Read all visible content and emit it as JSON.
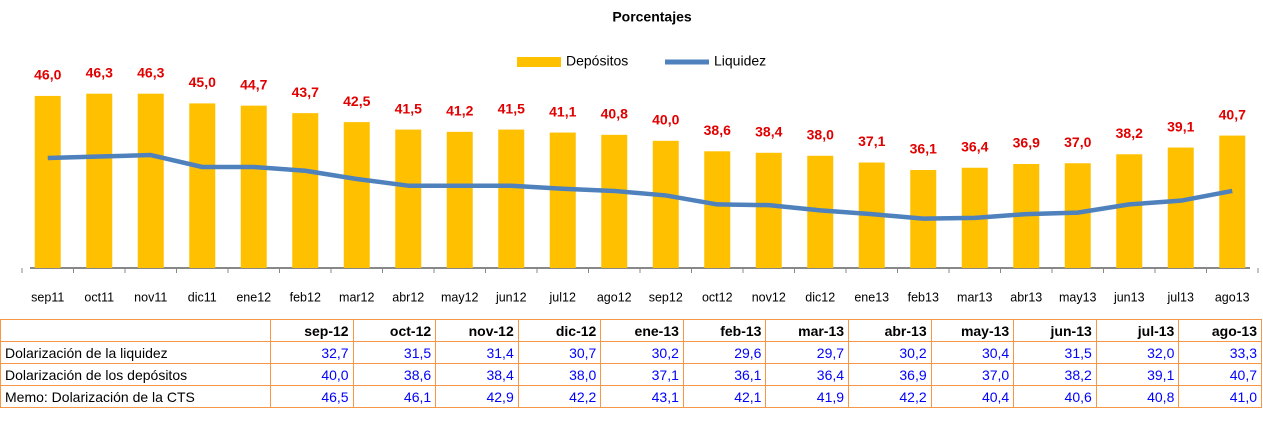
{
  "chart_data": {
    "type": "combo",
    "title": "Porcentajes",
    "categories": [
      "sep11",
      "oct11",
      "nov11",
      "dic11",
      "ene12",
      "feb12",
      "mar12",
      "abr12",
      "may12",
      "jun12",
      "jul12",
      "ago12",
      "sep12",
      "oct12",
      "nov12",
      "dic12",
      "ene13",
      "feb13",
      "mar13",
      "abr13",
      "may13",
      "jun13",
      "jul13",
      "ago13"
    ],
    "series": [
      {
        "name": "Depósitos",
        "type": "bar",
        "color": "#FFC000",
        "label_color": "#E00000",
        "values": [
          46.0,
          46.3,
          46.3,
          45.0,
          44.7,
          43.7,
          42.5,
          41.5,
          41.2,
          41.5,
          41.1,
          40.8,
          40.0,
          38.6,
          38.4,
          38.0,
          37.1,
          36.1,
          36.4,
          36.9,
          37.0,
          38.2,
          39.1,
          40.7
        ],
        "value_labels": [
          "46,0",
          "46,3",
          "46,3",
          "45,0",
          "44,7",
          "43,7",
          "42,5",
          "41,5",
          "41,2",
          "41,5",
          "41,1",
          "40,8",
          "40,0",
          "38,6",
          "38,4",
          "38,0",
          "37,1",
          "36,1",
          "36,4",
          "36,9",
          "37,0",
          "38,2",
          "39,1",
          "40,7"
        ]
      },
      {
        "name": "Liquidez",
        "type": "line",
        "color": "#4F81BD",
        "values": [
          37.7,
          37.9,
          38.1,
          36.5,
          36.5,
          36.0,
          34.9,
          34.0,
          34.0,
          34.0,
          33.6,
          33.3,
          32.7,
          31.5,
          31.4,
          30.7,
          30.2,
          29.6,
          29.7,
          30.2,
          30.4,
          31.5,
          32.0,
          33.3
        ]
      }
    ],
    "ylim": [
      23,
      50
    ],
    "grid": false
  },
  "table": {
    "columns": [
      "sep-12",
      "oct-12",
      "nov-12",
      "dic-12",
      "ene-13",
      "feb-13",
      "mar-13",
      "abr-13",
      "may-13",
      "jun-13",
      "jul-13",
      "ago-13"
    ],
    "rows": [
      {
        "label": "Dolarización de la liquidez",
        "values": [
          "32,7",
          "31,5",
          "31,4",
          "30,7",
          "30,2",
          "29,6",
          "29,7",
          "30,2",
          "30,4",
          "31,5",
          "32,0",
          "33,3"
        ]
      },
      {
        "label": "Dolarización de los depósitos",
        "values": [
          "40,0",
          "38,6",
          "38,4",
          "38,0",
          "37,1",
          "36,1",
          "36,4",
          "36,9",
          "37,0",
          "38,2",
          "39,1",
          "40,7"
        ]
      },
      {
        "label": "Memo: Dolarización de la CTS",
        "values": [
          "46,5",
          "46,1",
          "42,9",
          "42,2",
          "43,1",
          "42,1",
          "41,9",
          "42,2",
          "40,4",
          "40,6",
          "40,8",
          "41,0"
        ]
      }
    ]
  }
}
